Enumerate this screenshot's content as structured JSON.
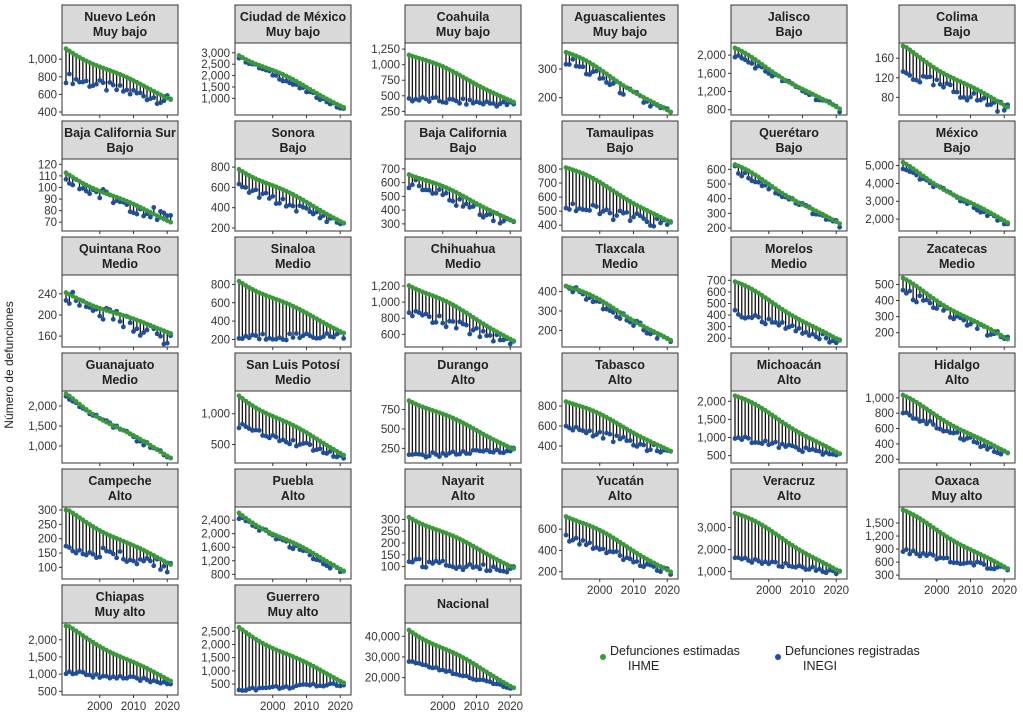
{
  "chart_data": {
    "type": "dumbbell-small-multiples",
    "ylabel": "Número de defunciones",
    "x_ticks": [
      2000,
      2010,
      2020
    ],
    "x_range": [
      1990,
      2022
    ],
    "legend": [
      {
        "label": "Defunciones estimadas",
        "label2": "IHME",
        "color": "#3a9a3a"
      },
      {
        "label": "Defunciones registradas",
        "label2": "INEGI",
        "color": "#1f4e9b"
      }
    ],
    "panels": [
      {
        "state": "Nuevo León",
        "level": "Muy bajo",
        "ylim": [
          400,
          1150
        ],
        "yticks": [
          400,
          600,
          800,
          "1,000"
        ],
        "ihme": [
          1120,
          540
        ],
        "inegi": [
          790,
          520
        ],
        "noise": 60
      },
      {
        "state": "Ciudad de México",
        "level": "Muy bajo",
        "ylim": [
          400,
          3300
        ],
        "yticks": [
          "1,000",
          "1,500",
          "2,000",
          "2,500",
          "3,000"
        ],
        "ihme": [
          3000,
          600
        ],
        "inegi": [
          2800,
          500
        ],
        "noise": 80
      },
      {
        "state": "Coahuila",
        "level": "Muy bajo",
        "ylim": [
          240,
          1300
        ],
        "yticks": [
          250,
          500,
          750,
          "1,000",
          "1,250"
        ],
        "ihme": [
          1200,
          400
        ],
        "inegi": [
          450,
          360
        ],
        "noise": 50
      },
      {
        "state": "Aguascalientes",
        "level": "Muy bajo",
        "ylim": [
          150,
          380
        ],
        "yticks": [
          200,
          300
        ],
        "ihme": [
          360,
          150
        ],
        "inegi": [
          330,
          140
        ],
        "noise": 20
      },
      {
        "state": "Jalisco",
        "level": "Bajo",
        "ylim": [
          750,
          2200
        ],
        "yticks": [
          800,
          "1,200",
          "1,600",
          "2,000"
        ],
        "ihme": [
          2100,
          820
        ],
        "inegi": [
          2000,
          800
        ],
        "noise": 60
      },
      {
        "state": "Colima",
        "level": "Bajo",
        "ylim": [
          50,
          185
        ],
        "yticks": [
          80,
          120,
          160
        ],
        "ihme": [
          180,
          60
        ],
        "inegi": [
          130,
          55
        ],
        "noise": 12
      },
      {
        "state": "Baja California Sur",
        "level": "Bajo",
        "ylim": [
          65,
          122
        ],
        "yticks": [
          70,
          80,
          90,
          100,
          110,
          120
        ],
        "ihme": [
          112,
          70
        ],
        "inegi": [
          105,
          72
        ],
        "noise": 6
      },
      {
        "state": "Sonora",
        "level": "Bajo",
        "ylim": [
          200,
          850
        ],
        "yticks": [
          200,
          400,
          600,
          800
        ],
        "ihme": [
          800,
          250
        ],
        "inegi": [
          600,
          240
        ],
        "noise": 40
      },
      {
        "state": "Baja California",
        "level": "Bajo",
        "ylim": [
          270,
          750
        ],
        "yticks": [
          300,
          400,
          500,
          600,
          700
        ],
        "ihme": [
          680,
          320
        ],
        "inegi": [
          600,
          300
        ],
        "noise": 40
      },
      {
        "state": "Tamaulipas",
        "level": "Bajo",
        "ylim": [
          380,
          850
        ],
        "yticks": [
          400,
          500,
          600,
          700,
          800
        ],
        "ihme": [
          820,
          420
        ],
        "inegi": [
          540,
          400
        ],
        "noise": 40
      },
      {
        "state": "Querétaro",
        "level": "Bajo",
        "ylim": [
          200,
          650
        ],
        "yticks": [
          200,
          300,
          400,
          500,
          600
        ],
        "ihme": [
          620,
          230
        ],
        "inegi": [
          600,
          220
        ],
        "noise": 25
      },
      {
        "state": "México",
        "level": "Bajo",
        "ylim": [
          1500,
          5200
        ],
        "yticks": [
          "2,000",
          "3,000",
          "4,000",
          "5,000"
        ],
        "ihme": [
          5000,
          1800
        ],
        "inegi": [
          4800,
          1700
        ],
        "noise": 120
      },
      {
        "state": "Quintana Roo",
        "level": "Medio",
        "ylim": [
          145,
          270
        ],
        "yticks": [
          160,
          200,
          240
        ],
        "ihme": [
          240,
          165
        ],
        "inegi": [
          235,
          150
        ],
        "noise": 14
      },
      {
        "state": "Sinaloa",
        "level": "Medio",
        "ylim": [
          150,
          870
        ],
        "yticks": [
          200,
          400,
          600,
          800
        ],
        "ihme": [
          850,
          270
        ],
        "inegi": [
          220,
          250
        ],
        "noise": 40
      },
      {
        "state": "Chihuahua",
        "level": "Medio",
        "ylim": [
          480,
          1300
        ],
        "yticks": [
          600,
          800,
          "1,000",
          "1,200"
        ],
        "ihme": [
          1250,
          520
        ],
        "inegi": [
          880,
          500
        ],
        "noise": 60
      },
      {
        "state": "Tlaxcala",
        "level": "Medio",
        "ylim": [
          130,
          470
        ],
        "yticks": [
          200,
          300,
          400
        ],
        "ihme": [
          440,
          150
        ],
        "inegi": [
          430,
          140
        ],
        "noise": 20
      },
      {
        "state": "Morelos",
        "level": "Medio",
        "ylim": [
          150,
          720
        ],
        "yticks": [
          200,
          300,
          400,
          500,
          600,
          700
        ],
        "ihme": [
          680,
          180
        ],
        "inegi": [
          420,
          170
        ],
        "noise": 30
      },
      {
        "state": "Zacatecas",
        "level": "Medio",
        "ylim": [
          130,
          540
        ],
        "yticks": [
          200,
          300,
          400,
          500
        ],
        "ihme": [
          520,
          160
        ],
        "inegi": [
          450,
          150
        ],
        "noise": 30
      },
      {
        "state": "Guanajuato",
        "level": "Medio",
        "ylim": [
          650,
          2300
        ],
        "yticks": [
          "1,000",
          "1,500",
          "2,000"
        ],
        "ihme": [
          2250,
          700
        ],
        "inegi": [
          2200,
          690
        ],
        "noise": 60
      },
      {
        "state": "San Luis Potosí",
        "level": "Medio",
        "ylim": [
          250,
          1320
        ],
        "yticks": [
          500,
          "1,000"
        ],
        "ihme": [
          1300,
          330
        ],
        "inegi": [
          800,
          300
        ],
        "noise": 50
      },
      {
        "state": "Durango",
        "level": "Alto",
        "ylim": [
          100,
          950
        ],
        "yticks": [
          250,
          500,
          750
        ],
        "ihme": [
          900,
          240
        ],
        "inegi": [
          150,
          230
        ],
        "noise": 30
      },
      {
        "state": "Tabasco",
        "level": "Alto",
        "ylim": [
          260,
          920
        ],
        "yticks": [
          400,
          600,
          800
        ],
        "ihme": [
          870,
          350
        ],
        "inegi": [
          600,
          330
        ],
        "noise": 40
      },
      {
        "state": "Michoacán",
        "level": "Alto",
        "ylim": [
          380,
          2200
        ],
        "yticks": [
          500,
          "1,000",
          "1,500",
          "2,000"
        ],
        "ihme": [
          2150,
          550
        ],
        "inegi": [
          1000,
          500
        ],
        "noise": 70
      },
      {
        "state": "Hidalgo",
        "level": "Alto",
        "ylim": [
          190,
          1050
        ],
        "yticks": [
          200,
          400,
          600,
          800,
          "1,000"
        ],
        "ihme": [
          1000,
          280
        ],
        "inegi": [
          800,
          260
        ],
        "noise": 40
      },
      {
        "state": "Campeche",
        "level": "Alto",
        "ylim": [
          70,
          300
        ],
        "yticks": [
          100,
          150,
          200,
          250,
          300
        ],
        "ihme": [
          295,
          110
        ],
        "inegi": [
          175,
          100
        ],
        "noise": 20
      },
      {
        "state": "Puebla",
        "level": "Alto",
        "ylim": [
          750,
          2700
        ],
        "yticks": [
          800,
          "1,200",
          "1,600",
          "2,000",
          "2,400"
        ],
        "ihme": [
          2600,
          900
        ],
        "inegi": [
          2450,
          850
        ],
        "noise": 80
      },
      {
        "state": "Nayarit",
        "level": "Alto",
        "ylim": [
          60,
          340
        ],
        "yticks": [
          100,
          150,
          200,
          250,
          300
        ],
        "ihme": [
          320,
          95
        ],
        "inegi": [
          120,
          90
        ],
        "noise": 20
      },
      {
        "state": "Yucatán",
        "level": "Alto",
        "ylim": [
          160,
          780
        ],
        "yticks": [
          200,
          400,
          600
        ],
        "ihme": [
          750,
          200
        ],
        "inegi": [
          520,
          190
        ],
        "noise": 30
      },
      {
        "state": "Veracruz",
        "level": "Alto",
        "ylim": [
          800,
          3800
        ],
        "yticks": [
          "1,000",
          "2,000",
          "3,000"
        ],
        "ihme": [
          3700,
          1000
        ],
        "inegi": [
          1600,
          950
        ],
        "noise": 100
      },
      {
        "state": "Oaxaca",
        "level": "Muy alto",
        "ylim": [
          280,
          1800
        ],
        "yticks": [
          300,
          600,
          900,
          "1,200",
          "1,500"
        ],
        "ihme": [
          1750,
          450
        ],
        "inegi": [
          850,
          420
        ],
        "noise": 60
      },
      {
        "state": "Chiapas",
        "level": "Muy alto",
        "ylim": [
          480,
          2400
        ],
        "yticks": [
          500,
          "1,000",
          "1,500",
          "2,000"
        ],
        "ihme": [
          2350,
          800
        ],
        "inegi": [
          1050,
          750
        ],
        "noise": 70
      },
      {
        "state": "Guerrero",
        "level": "Muy alto",
        "ylim": [
          200,
          2700
        ],
        "yticks": [
          500,
          "1,000",
          "1,500",
          "2,000",
          "2,500"
        ],
        "ihme": [
          2600,
          550
        ],
        "inegi": [
          300,
          500
        ],
        "noise": 70
      },
      {
        "state": "Nacional",
        "level": "",
        "ylim": [
          13000,
          45000
        ],
        "yticks": [
          "20,000",
          "30,000",
          "40,000"
        ],
        "ihme": [
          44000,
          15000
        ],
        "inegi": [
          28000,
          14500
        ],
        "noise": 600
      }
    ]
  }
}
